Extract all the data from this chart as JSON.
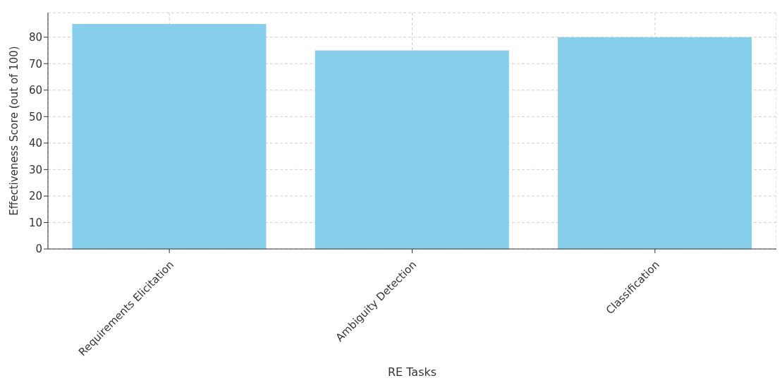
{
  "chart_data": {
    "type": "bar",
    "xlabel": "RE Tasks",
    "ylabel": "Effectiveness Score (out of 100)",
    "categories": [
      "Requirements Elicitation",
      "Ambiguity Detection",
      "Classification"
    ],
    "values": [
      85,
      75,
      80
    ],
    "color": "#87ceeb",
    "ylim": [
      0,
      89.25
    ],
    "yticks": [
      0,
      10,
      20,
      30,
      40,
      50,
      60,
      70,
      80
    ],
    "grid": true
  }
}
